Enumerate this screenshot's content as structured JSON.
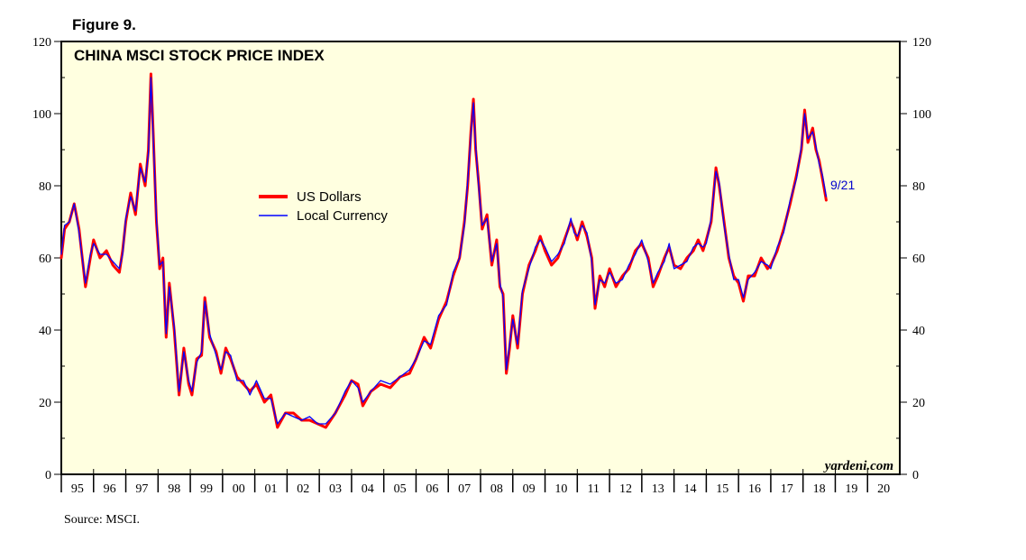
{
  "figure_label": "Figure 9.",
  "source": "Source: MSCI.",
  "watermark": "yardeni.com",
  "chart_data": {
    "type": "line",
    "title": "CHINA MSCI STOCK PRICE INDEX",
    "xlabel": "",
    "ylabel": "",
    "xlim": [
      1995,
      2021
    ],
    "ylim": [
      0,
      120
    ],
    "y_ticks": [
      0,
      20,
      40,
      60,
      80,
      100,
      120
    ],
    "x_tick_labels": [
      "95",
      "96",
      "97",
      "98",
      "99",
      "00",
      "01",
      "02",
      "03",
      "04",
      "05",
      "06",
      "07",
      "08",
      "09",
      "10",
      "11",
      "12",
      "13",
      "14",
      "15",
      "16",
      "17",
      "18",
      "19",
      "20"
    ],
    "legend": [
      "US Dollars",
      "Local Currency"
    ],
    "legend_position": "upper-middle",
    "last_point_annotation": "9/21",
    "plot_background": "#ffffe0",
    "series": [
      {
        "name": "US Dollars",
        "color": "#ff0000",
        "points": [
          [
            1995.0,
            60
          ],
          [
            1995.1,
            68
          ],
          [
            1995.25,
            70
          ],
          [
            1995.4,
            75
          ],
          [
            1995.55,
            68
          ],
          [
            1995.75,
            52
          ],
          [
            1995.9,
            60
          ],
          [
            1996.0,
            65
          ],
          [
            1996.2,
            60
          ],
          [
            1996.4,
            62
          ],
          [
            1996.6,
            58
          ],
          [
            1996.8,
            56
          ],
          [
            1996.9,
            62
          ],
          [
            1997.0,
            70
          ],
          [
            1997.15,
            78
          ],
          [
            1997.3,
            72
          ],
          [
            1997.45,
            86
          ],
          [
            1997.6,
            80
          ],
          [
            1997.7,
            90
          ],
          [
            1997.78,
            111
          ],
          [
            1997.85,
            95
          ],
          [
            1997.95,
            70
          ],
          [
            1998.05,
            57
          ],
          [
            1998.15,
            60
          ],
          [
            1998.25,
            38
          ],
          [
            1998.35,
            53
          ],
          [
            1998.5,
            40
          ],
          [
            1998.65,
            22
          ],
          [
            1998.8,
            35
          ],
          [
            1998.95,
            25
          ],
          [
            1999.05,
            22
          ],
          [
            1999.2,
            32
          ],
          [
            1999.35,
            33
          ],
          [
            1999.45,
            49
          ],
          [
            1999.6,
            38
          ],
          [
            1999.8,
            34
          ],
          [
            1999.95,
            28
          ],
          [
            2000.1,
            35
          ],
          [
            2000.25,
            32
          ],
          [
            2000.45,
            27
          ],
          [
            2000.65,
            25
          ],
          [
            2000.85,
            23
          ],
          [
            2001.05,
            25
          ],
          [
            2001.3,
            20
          ],
          [
            2001.5,
            22
          ],
          [
            2001.7,
            13
          ],
          [
            2001.95,
            17
          ],
          [
            2002.2,
            17
          ],
          [
            2002.45,
            15
          ],
          [
            2002.7,
            15
          ],
          [
            2002.95,
            14
          ],
          [
            2003.2,
            13
          ],
          [
            2003.5,
            17
          ],
          [
            2003.8,
            22
          ],
          [
            2004.0,
            26
          ],
          [
            2004.2,
            25
          ],
          [
            2004.35,
            19
          ],
          [
            2004.6,
            23
          ],
          [
            2004.9,
            25
          ],
          [
            2005.2,
            24
          ],
          [
            2005.5,
            27
          ],
          [
            2005.8,
            28
          ],
          [
            2006.0,
            32
          ],
          [
            2006.25,
            38
          ],
          [
            2006.45,
            35
          ],
          [
            2006.7,
            43
          ],
          [
            2006.95,
            48
          ],
          [
            2007.15,
            55
          ],
          [
            2007.35,
            60
          ],
          [
            2007.5,
            70
          ],
          [
            2007.6,
            80
          ],
          [
            2007.7,
            95
          ],
          [
            2007.78,
            104
          ],
          [
            2007.85,
            90
          ],
          [
            2007.95,
            80
          ],
          [
            2008.05,
            68
          ],
          [
            2008.2,
            72
          ],
          [
            2008.35,
            58
          ],
          [
            2008.5,
            65
          ],
          [
            2008.6,
            52
          ],
          [
            2008.7,
            50
          ],
          [
            2008.8,
            28
          ],
          [
            2008.9,
            35
          ],
          [
            2009.0,
            44
          ],
          [
            2009.15,
            35
          ],
          [
            2009.3,
            50
          ],
          [
            2009.5,
            58
          ],
          [
            2009.7,
            62
          ],
          [
            2009.85,
            66
          ],
          [
            2010.0,
            62
          ],
          [
            2010.2,
            58
          ],
          [
            2010.4,
            60
          ],
          [
            2010.6,
            65
          ],
          [
            2010.8,
            70
          ],
          [
            2010.9,
            68
          ],
          [
            2011.0,
            65
          ],
          [
            2011.15,
            70
          ],
          [
            2011.3,
            66
          ],
          [
            2011.45,
            60
          ],
          [
            2011.55,
            46
          ],
          [
            2011.7,
            55
          ],
          [
            2011.85,
            52
          ],
          [
            2012.0,
            57
          ],
          [
            2012.2,
            52
          ],
          [
            2012.4,
            55
          ],
          [
            2012.6,
            57
          ],
          [
            2012.8,
            62
          ],
          [
            2013.0,
            64
          ],
          [
            2013.2,
            60
          ],
          [
            2013.35,
            52
          ],
          [
            2013.5,
            55
          ],
          [
            2013.7,
            60
          ],
          [
            2013.85,
            63
          ],
          [
            2014.0,
            58
          ],
          [
            2014.2,
            57
          ],
          [
            2014.4,
            60
          ],
          [
            2014.6,
            62
          ],
          [
            2014.75,
            65
          ],
          [
            2014.9,
            62
          ],
          [
            2015.0,
            65
          ],
          [
            2015.15,
            70
          ],
          [
            2015.3,
            85
          ],
          [
            2015.4,
            80
          ],
          [
            2015.55,
            70
          ],
          [
            2015.7,
            60
          ],
          [
            2015.85,
            55
          ],
          [
            2016.0,
            53
          ],
          [
            2016.15,
            48
          ],
          [
            2016.3,
            55
          ],
          [
            2016.5,
            55
          ],
          [
            2016.7,
            60
          ],
          [
            2016.9,
            57
          ],
          [
            2017.0,
            58
          ],
          [
            2017.2,
            62
          ],
          [
            2017.4,
            68
          ],
          [
            2017.6,
            75
          ],
          [
            2017.8,
            83
          ],
          [
            2017.95,
            90
          ],
          [
            2018.05,
            101
          ],
          [
            2018.15,
            92
          ],
          [
            2018.3,
            96
          ],
          [
            2018.4,
            90
          ],
          [
            2018.5,
            87
          ],
          [
            2018.6,
            82
          ],
          [
            2018.72,
            76
          ]
        ]
      },
      {
        "name": "Local Currency",
        "color": "#0000ff",
        "points": [
          [
            1995.0,
            61
          ],
          [
            1995.1,
            69
          ],
          [
            1995.25,
            70
          ],
          [
            1995.4,
            75
          ],
          [
            1995.55,
            67
          ],
          [
            1995.75,
            53
          ],
          [
            1995.9,
            61
          ],
          [
            1996.0,
            64
          ],
          [
            1996.2,
            61
          ],
          [
            1996.4,
            61
          ],
          [
            1996.6,
            59
          ],
          [
            1996.8,
            57
          ],
          [
            1996.9,
            61
          ],
          [
            1997.0,
            71
          ],
          [
            1997.15,
            77
          ],
          [
            1997.3,
            73
          ],
          [
            1997.45,
            85
          ],
          [
            1997.6,
            81
          ],
          [
            1997.7,
            89
          ],
          [
            1997.78,
            110
          ],
          [
            1997.85,
            94
          ],
          [
            1997.95,
            71
          ],
          [
            1998.05,
            58
          ],
          [
            1998.15,
            59
          ],
          [
            1998.25,
            39
          ],
          [
            1998.35,
            52
          ],
          [
            1998.5,
            41
          ],
          [
            1998.65,
            23
          ],
          [
            1998.8,
            34
          ],
          [
            1998.95,
            26
          ],
          [
            1999.05,
            23
          ],
          [
            1999.2,
            31
          ],
          [
            1999.35,
            34
          ],
          [
            1999.45,
            48
          ],
          [
            1999.6,
            39
          ],
          [
            1999.8,
            33
          ],
          [
            1999.95,
            29
          ],
          [
            2000.1,
            34
          ],
          [
            2000.25,
            33
          ],
          [
            2000.45,
            26
          ],
          [
            2000.65,
            26
          ],
          [
            2000.85,
            22
          ],
          [
            2001.05,
            26
          ],
          [
            2001.3,
            21
          ],
          [
            2001.5,
            21
          ],
          [
            2001.7,
            14
          ],
          [
            2001.95,
            17
          ],
          [
            2002.2,
            16
          ],
          [
            2002.45,
            15
          ],
          [
            2002.7,
            16
          ],
          [
            2002.95,
            14
          ],
          [
            2003.2,
            14
          ],
          [
            2003.5,
            17
          ],
          [
            2003.8,
            23
          ],
          [
            2004.0,
            26
          ],
          [
            2004.2,
            24
          ],
          [
            2004.35,
            20
          ],
          [
            2004.6,
            23
          ],
          [
            2004.9,
            26
          ],
          [
            2005.2,
            25
          ],
          [
            2005.5,
            27
          ],
          [
            2005.8,
            29
          ],
          [
            2006.0,
            32
          ],
          [
            2006.25,
            37
          ],
          [
            2006.45,
            36
          ],
          [
            2006.7,
            44
          ],
          [
            2006.95,
            47
          ],
          [
            2007.15,
            56
          ],
          [
            2007.35,
            60
          ],
          [
            2007.5,
            69
          ],
          [
            2007.6,
            81
          ],
          [
            2007.7,
            94
          ],
          [
            2007.78,
            103
          ],
          [
            2007.85,
            91
          ],
          [
            2007.95,
            79
          ],
          [
            2008.05,
            69
          ],
          [
            2008.2,
            71
          ],
          [
            2008.35,
            59
          ],
          [
            2008.5,
            64
          ],
          [
            2008.6,
            53
          ],
          [
            2008.7,
            49
          ],
          [
            2008.8,
            29
          ],
          [
            2008.9,
            36
          ],
          [
            2009.0,
            43
          ],
          [
            2009.15,
            36
          ],
          [
            2009.3,
            51
          ],
          [
            2009.5,
            57
          ],
          [
            2009.7,
            63
          ],
          [
            2009.85,
            65
          ],
          [
            2010.0,
            63
          ],
          [
            2010.2,
            59
          ],
          [
            2010.4,
            61
          ],
          [
            2010.6,
            64
          ],
          [
            2010.8,
            71
          ],
          [
            2010.9,
            67
          ],
          [
            2011.0,
            66
          ],
          [
            2011.15,
            69
          ],
          [
            2011.3,
            67
          ],
          [
            2011.45,
            59
          ],
          [
            2011.55,
            47
          ],
          [
            2011.7,
            54
          ],
          [
            2011.85,
            53
          ],
          [
            2012.0,
            56
          ],
          [
            2012.2,
            53
          ],
          [
            2012.4,
            54
          ],
          [
            2012.6,
            58
          ],
          [
            2012.8,
            61
          ],
          [
            2013.0,
            65
          ],
          [
            2013.2,
            59
          ],
          [
            2013.35,
            53
          ],
          [
            2013.5,
            56
          ],
          [
            2013.7,
            59
          ],
          [
            2013.85,
            64
          ],
          [
            2014.0,
            57
          ],
          [
            2014.2,
            58
          ],
          [
            2014.4,
            59
          ],
          [
            2014.6,
            63
          ],
          [
            2014.75,
            64
          ],
          [
            2014.9,
            63
          ],
          [
            2015.0,
            64
          ],
          [
            2015.15,
            71
          ],
          [
            2015.3,
            84
          ],
          [
            2015.4,
            81
          ],
          [
            2015.55,
            69
          ],
          [
            2015.7,
            61
          ],
          [
            2015.85,
            54
          ],
          [
            2016.0,
            54
          ],
          [
            2016.15,
            49
          ],
          [
            2016.3,
            54
          ],
          [
            2016.5,
            56
          ],
          [
            2016.7,
            59
          ],
          [
            2016.9,
            58
          ],
          [
            2017.0,
            57
          ],
          [
            2017.2,
            63
          ],
          [
            2017.4,
            67
          ],
          [
            2017.6,
            76
          ],
          [
            2017.8,
            82
          ],
          [
            2017.95,
            91
          ],
          [
            2018.05,
            100
          ],
          [
            2018.15,
            93
          ],
          [
            2018.3,
            95
          ],
          [
            2018.4,
            91
          ],
          [
            2018.5,
            86
          ],
          [
            2018.6,
            83
          ],
          [
            2018.72,
            77
          ]
        ]
      }
    ]
  }
}
